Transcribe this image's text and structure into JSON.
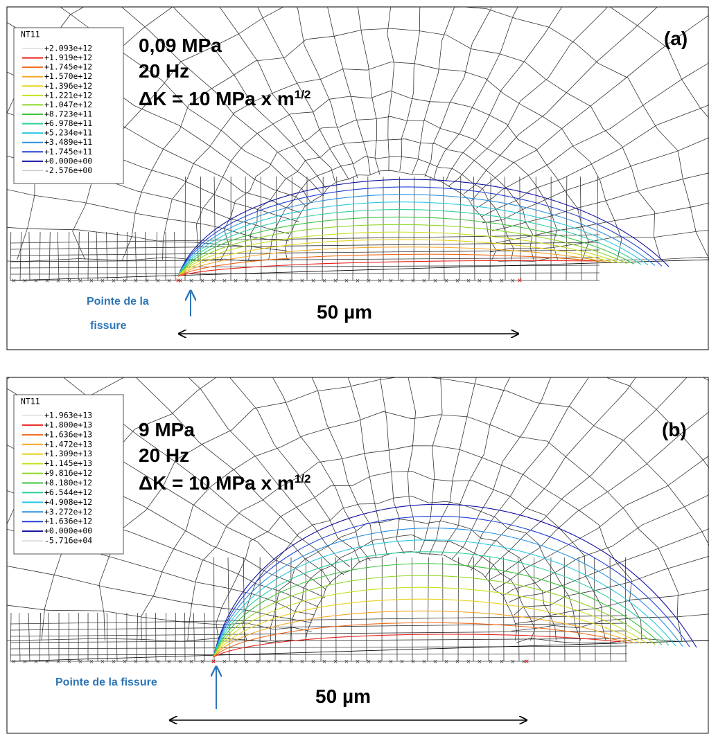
{
  "panels": [
    {
      "label": "(a)",
      "legend": {
        "title": "NT11",
        "entries": [
          "+2.093e+12",
          "+1.919e+12",
          "+1.745e+12",
          "+1.570e+12",
          "+1.396e+12",
          "+1.221e+12",
          "+1.047e+12",
          "+8.723e+11",
          "+6.978e+11",
          "+5.234e+11",
          "+3.489e+11",
          "+1.745e+11",
          "+0.000e+00",
          "-2.576e+00"
        ],
        "colors": [
          "#ffffff",
          "#e8231b",
          "#f06a1a",
          "#f6a623",
          "#e8d21c",
          "#c8e01c",
          "#8fd62a",
          "#3cc43c",
          "#2cd0a0",
          "#26c8e0",
          "#2a90e0",
          "#2040d8",
          "#1010a0",
          "#ffffff"
        ]
      },
      "load": "0,09 MPa",
      "frequency": "20 Hz",
      "delta_k": {
        "text": "ΔK = 10 MPa x m",
        "superscript": "1/2"
      },
      "crack_tip_label": [
        "Pointe de la",
        "fissure"
      ],
      "scale_label": "50 µm"
    },
    {
      "label": "(b)",
      "legend": {
        "title": "NT11",
        "entries": [
          "+1.963e+13",
          "+1.800e+13",
          "+1.636e+13",
          "+1.472e+13",
          "+1.309e+13",
          "+1.145e+13",
          "+9.816e+12",
          "+8.180e+12",
          "+6.544e+12",
          "+4.908e+12",
          "+3.272e+12",
          "+1.636e+12",
          "+0.000e+00",
          "-5.716e+04"
        ],
        "colors": [
          "#ffffff",
          "#e8231b",
          "#f06a1a",
          "#f6a623",
          "#e8d21c",
          "#c8e01c",
          "#8fd62a",
          "#3cc43c",
          "#2cd0a0",
          "#26c8e0",
          "#2a90e0",
          "#2040d8",
          "#1010a0",
          "#ffffff"
        ]
      },
      "load": "9 MPa",
      "frequency": "20 Hz",
      "delta_k": {
        "text": "ΔK = 10 MPa x m",
        "superscript": "1/2"
      },
      "crack_tip_label": [
        "Pointe de la fissure"
      ],
      "scale_label": "50 µm"
    }
  ]
}
